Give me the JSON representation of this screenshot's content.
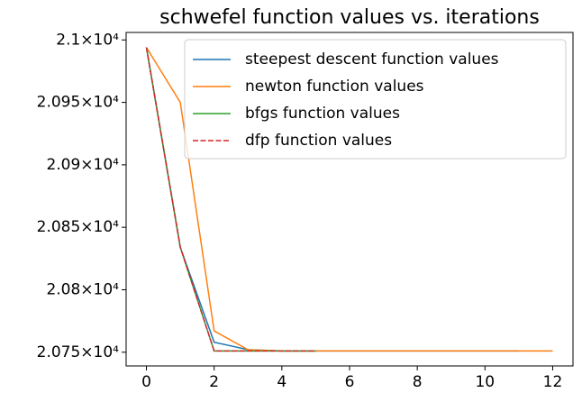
{
  "chart_data": {
    "type": "line",
    "title": "schwefel function values vs. iterations",
    "x": [
      0,
      1,
      2,
      3,
      4,
      5,
      6,
      7,
      8,
      9,
      10,
      11,
      12
    ],
    "series": [
      {
        "name": "steepest descent function values",
        "color": "#1f77b4",
        "values": [
          20994,
          20834,
          20758,
          20752,
          20751,
          20751,
          20751,
          20751,
          20751,
          20751,
          20751,
          20751,
          null
        ]
      },
      {
        "name": "newton function values",
        "color": "#ff7f0e",
        "values": [
          20994,
          20950,
          20767,
          20752,
          20751,
          20751,
          20751,
          20751,
          20751,
          20751,
          20751,
          20751,
          20751
        ]
      },
      {
        "name": "bfgs function values",
        "color": "#2ca02c",
        "values": [
          20994,
          20834,
          20751,
          20751,
          20751,
          20751,
          null,
          null,
          null,
          null,
          null,
          null,
          null
        ]
      },
      {
        "name": "dfp function values",
        "color": "#d62728",
        "dashed": true,
        "values": [
          20994,
          20834,
          20751,
          20751,
          20751,
          20751,
          null,
          null,
          null,
          null,
          null,
          null,
          null
        ]
      }
    ],
    "xlim": [
      -0.6,
      12.6
    ],
    "xticks": [
      0,
      2,
      4,
      6,
      8,
      10,
      12
    ],
    "ylim": [
      20739,
      21006
    ],
    "yticks": [
      {
        "value": 20750,
        "label": "2.075×10⁴"
      },
      {
        "value": 20800,
        "label": "2.08×10⁴"
      },
      {
        "value": 20850,
        "label": "2.085×10⁴"
      },
      {
        "value": 20900,
        "label": "2.09×10⁴"
      },
      {
        "value": 20950,
        "label": "2.095×10⁴"
      },
      {
        "value": 21000,
        "label": "2.1×10⁴"
      }
    ],
    "legend": "upper right",
    "grid": false
  }
}
